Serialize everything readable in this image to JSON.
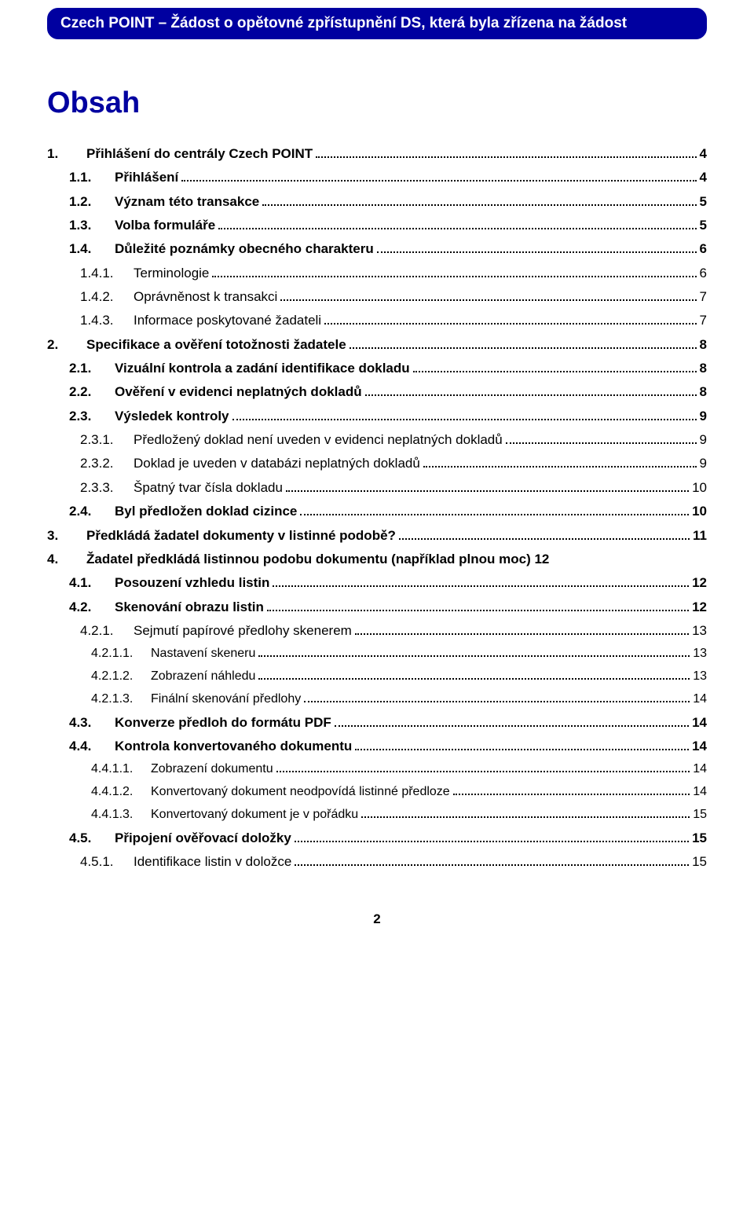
{
  "header": {
    "title": "Czech POINT – Žádost o opětovné zpřístupnění DS, která byla zřízena na žádost"
  },
  "toc": {
    "title": "Obsah"
  },
  "colors": {
    "band_bg": "#0000a0",
    "band_text": "#ffffff",
    "heading": "#0000a0",
    "text": "#000000",
    "page_bg": "#ffffff"
  },
  "page_number": "2",
  "entries": [
    {
      "level": 1,
      "bold": true,
      "num": "1.",
      "text": "Přihlášení do centrály Czech POINT",
      "page": "4"
    },
    {
      "level": 2,
      "bold": true,
      "num": "1.1.",
      "text": "Přihlášení",
      "page": "4"
    },
    {
      "level": 2,
      "bold": true,
      "num": "1.2.",
      "text": "Význam této transakce",
      "page": "5"
    },
    {
      "level": 2,
      "bold": true,
      "num": "1.3.",
      "text": "Volba formuláře",
      "page": "5"
    },
    {
      "level": 2,
      "bold": true,
      "num": "1.4.",
      "text": "Důležité poznámky obecného charakteru",
      "page": "6"
    },
    {
      "level": 3,
      "bold": false,
      "num": "1.4.1.",
      "text": "Terminologie",
      "page": "6"
    },
    {
      "level": 3,
      "bold": false,
      "num": "1.4.2.",
      "text": "Oprávněnost k transakci",
      "page": "7"
    },
    {
      "level": 3,
      "bold": false,
      "num": "1.4.3.",
      "text": "Informace poskytované žadateli",
      "page": "7"
    },
    {
      "level": 1,
      "bold": true,
      "num": "2.",
      "text": "Specifikace a ověření totožnosti žadatele",
      "page": "8"
    },
    {
      "level": 2,
      "bold": true,
      "num": "2.1.",
      "text": "Vizuální kontrola a zadání identifikace dokladu",
      "page": "8"
    },
    {
      "level": 2,
      "bold": true,
      "num": "2.2.",
      "text": "Ověření v evidenci neplatných dokladů",
      "page": "8"
    },
    {
      "level": 2,
      "bold": true,
      "num": "2.3.",
      "text": "Výsledek kontroly",
      "page": "9"
    },
    {
      "level": 3,
      "bold": false,
      "num": "2.3.1.",
      "text": "Předložený doklad není uveden v evidenci neplatných dokladů",
      "page": "9"
    },
    {
      "level": 3,
      "bold": false,
      "num": "2.3.2.",
      "text": "Doklad je uveden v databázi neplatných dokladů",
      "page": "9"
    },
    {
      "level": 3,
      "bold": false,
      "num": "2.3.3.",
      "text": "Špatný tvar čísla dokladu",
      "page": "10"
    },
    {
      "level": 2,
      "bold": true,
      "num": "2.4.",
      "text": "Byl předložen doklad cizince",
      "page": "10"
    },
    {
      "level": 1,
      "bold": true,
      "num": "3.",
      "text": "Předkládá žadatel dokumenty v listinné podobě?",
      "page": "11"
    },
    {
      "level": 1,
      "bold": true,
      "num": "4.",
      "text": "Žadatel předkládá listinnou podobu dokumentu (například plnou moc) 12",
      "page": ""
    },
    {
      "level": 2,
      "bold": true,
      "num": "4.1.",
      "text": "Posouzení vzhledu listin",
      "page": "12"
    },
    {
      "level": 2,
      "bold": true,
      "num": "4.2.",
      "text": "Skenování obrazu listin",
      "page": "12"
    },
    {
      "level": 3,
      "bold": false,
      "num": "4.2.1.",
      "text": "Sejmutí papírové předlohy skenerem",
      "page": "13"
    },
    {
      "level": 4,
      "bold": false,
      "num": "4.2.1.1.",
      "text": "Nastavení skeneru",
      "page": "13"
    },
    {
      "level": 4,
      "bold": false,
      "num": "4.2.1.2.",
      "text": "Zobrazení náhledu",
      "page": "13"
    },
    {
      "level": 4,
      "bold": false,
      "num": "4.2.1.3.",
      "text": "Finální skenování předlohy",
      "page": "14"
    },
    {
      "level": 2,
      "bold": true,
      "num": "4.3.",
      "text": "Konverze předloh do formátu PDF",
      "page": "14"
    },
    {
      "level": 2,
      "bold": true,
      "num": "4.4.",
      "text": "Kontrola konvertovaného dokumentu",
      "page": "14"
    },
    {
      "level": 4,
      "bold": false,
      "num": "4.4.1.1.",
      "text": "Zobrazení dokumentu",
      "page": "14"
    },
    {
      "level": 4,
      "bold": false,
      "num": "4.4.1.2.",
      "text": "Konvertovaný dokument neodpovídá listinné předloze",
      "page": "14"
    },
    {
      "level": 4,
      "bold": false,
      "num": "4.4.1.3.",
      "text": "Konvertovaný dokument je v pořádku",
      "page": "15"
    },
    {
      "level": 2,
      "bold": true,
      "num": "4.5.",
      "text": "Připojení ověřovací doložky",
      "page": "15"
    },
    {
      "level": 3,
      "bold": false,
      "num": "4.5.1.",
      "text": "Identifikace listin v doložce",
      "page": "15"
    }
  ]
}
